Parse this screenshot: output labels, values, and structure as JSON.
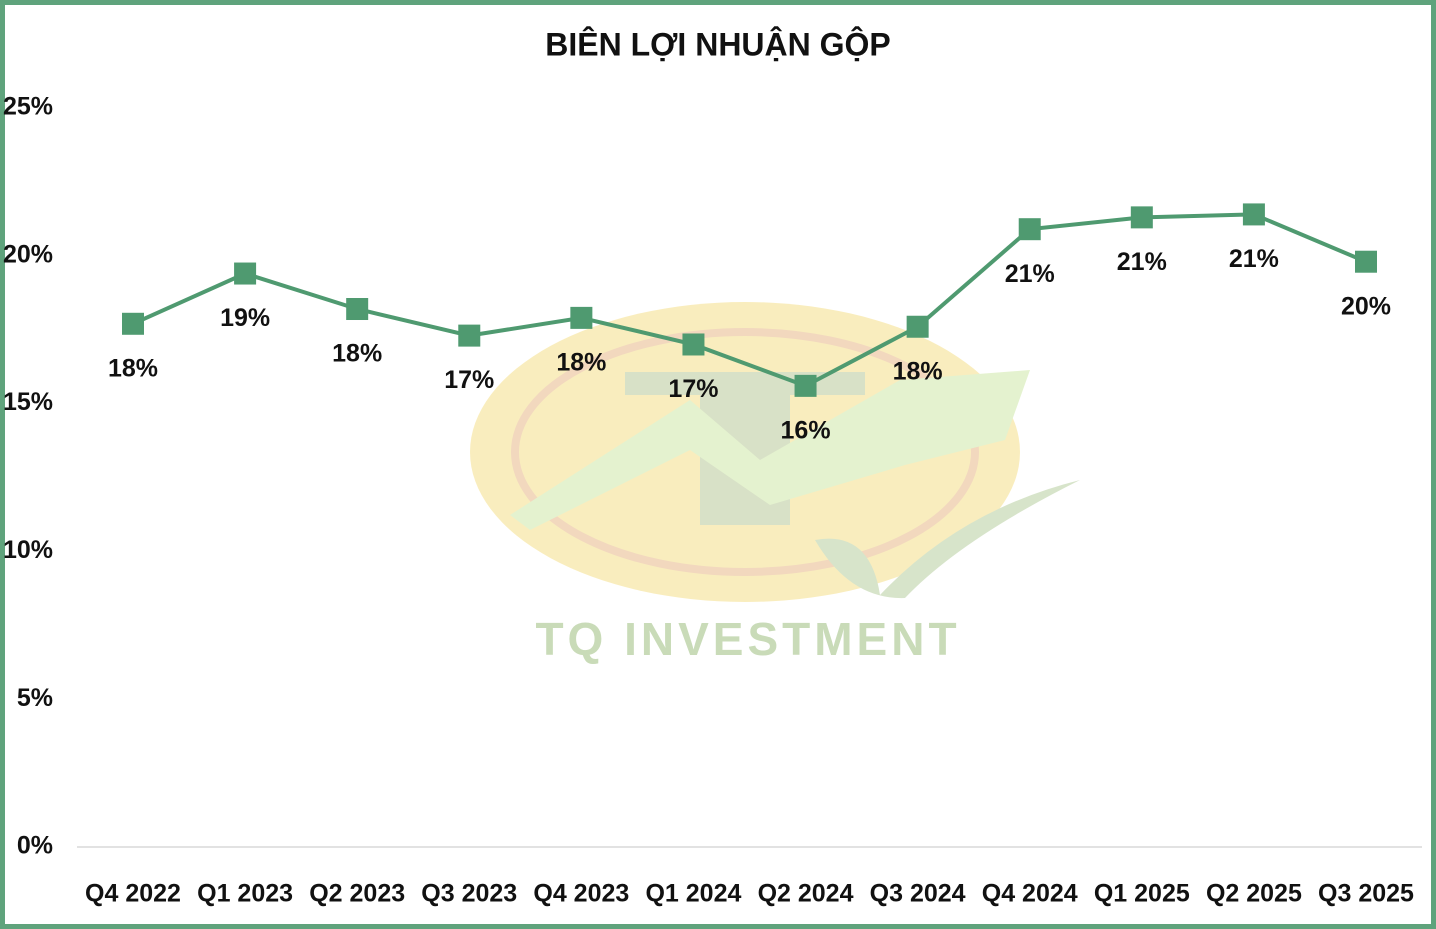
{
  "chart_data": {
    "type": "line",
    "title": "BIÊN LỢI NHUẬN GỘP",
    "watermark": "TQ INVESTMENT",
    "categories": [
      "Q4 2022",
      "Q1 2023",
      "Q2 2023",
      "Q3 2023",
      "Q4 2023",
      "Q1 2024",
      "Q2 2024",
      "Q3 2024",
      "Q4 2024",
      "Q1 2025",
      "Q2 2025",
      "Q3 2025"
    ],
    "series": [
      {
        "color": "#4f9a70",
        "values": [
          17.7,
          19.4,
          18.2,
          17.3,
          17.9,
          17.0,
          15.6,
          17.6,
          20.9,
          21.3,
          21.4,
          19.8
        ],
        "value_labels": [
          "18%",
          "19%",
          "18%",
          "17%",
          "18%",
          "17%",
          "16%",
          "18%",
          "21%",
          "21%",
          "21%",
          "20%"
        ]
      }
    ],
    "ylim": [
      0,
      25
    ],
    "yticks": [
      {
        "value": 0,
        "label": "0%"
      },
      {
        "value": 5,
        "label": "5%"
      },
      {
        "value": 10,
        "label": "10%"
      },
      {
        "value": 15,
        "label": "15%"
      },
      {
        "value": 20,
        "label": "20%"
      },
      {
        "value": 25,
        "label": "25%"
      }
    ],
    "grid": false
  }
}
